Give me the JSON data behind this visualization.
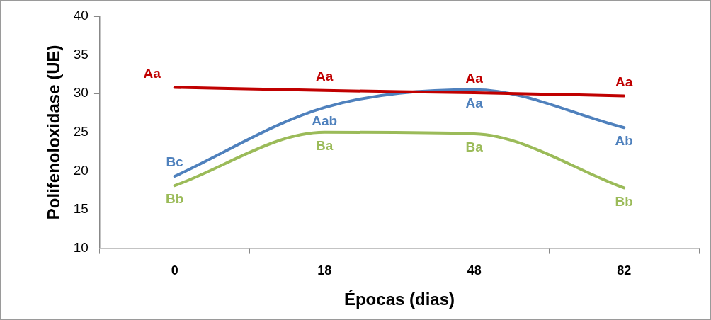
{
  "chart_data": {
    "type": "line",
    "xlabel": "Épocas (dias)",
    "ylabel": "Polifenoloxidase (UE)",
    "categories": [
      "0",
      "18",
      "48",
      "82"
    ],
    "series": [
      {
        "color": "#c00000",
        "values": [
          30.8,
          30.4,
          30.1,
          29.7
        ]
      },
      {
        "color": "#4f81bd",
        "values": [
          19.3,
          28.2,
          30.5,
          25.6
        ]
      },
      {
        "color": "#9bbb59",
        "values": [
          18.1,
          25.0,
          24.8,
          17.8
        ]
      }
    ],
    "ylim": [
      10,
      40
    ],
    "yticks": [
      10,
      15,
      20,
      25,
      30,
      35,
      40
    ],
    "grid": false,
    "legend": false,
    "marker": "none",
    "line_style": "solid",
    "annotations": [
      {
        "text": "Aa",
        "x": "0",
        "y": 30.8
      },
      {
        "text": "Aa",
        "x": "18",
        "y": 30.4
      },
      {
        "text": "Aa",
        "x": "48",
        "y": 30.1
      },
      {
        "text": "Aa",
        "x": "82",
        "y": 29.7
      },
      {
        "text": "Bc",
        "x": "0",
        "y": 19.3
      },
      {
        "text": "Aab",
        "x": "18",
        "y": 28.2
      },
      {
        "text": "Aa",
        "x": "48",
        "y": 30.5
      },
      {
        "text": "Ab",
        "x": "82",
        "y": 25.6
      },
      {
        "text": "Bb",
        "x": "0",
        "y": 18.1
      },
      {
        "text": "Ba",
        "x": "18",
        "y": 25.0
      },
      {
        "text": "Ba",
        "x": "48",
        "y": 24.8
      },
      {
        "text": "Bb",
        "x": "82",
        "y": 17.8
      }
    ]
  }
}
